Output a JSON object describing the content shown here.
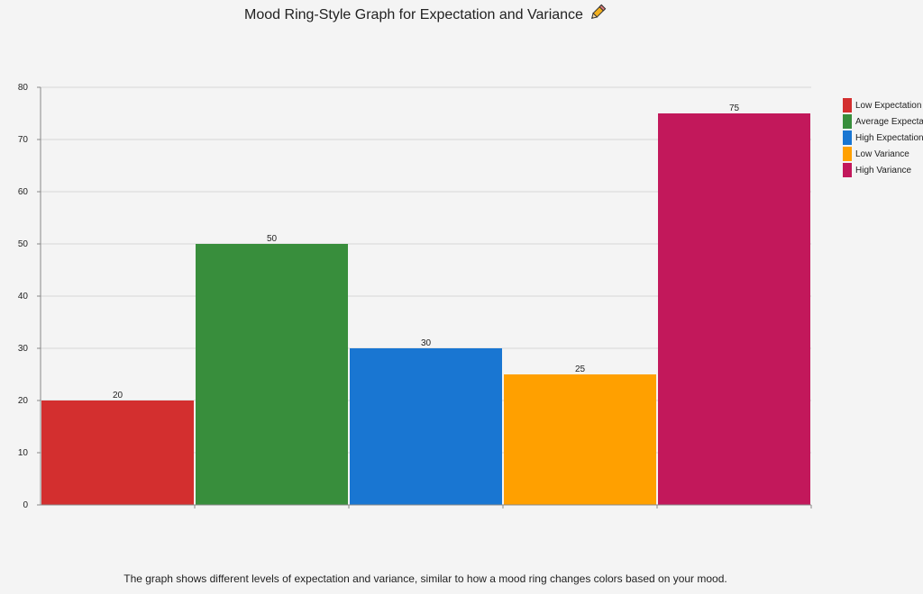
{
  "title": "Mood Ring-Style Graph for Expectation and Variance",
  "title_icon": "pencil-icon",
  "caption": "The graph shows different levels of expectation and variance, similar to how a mood ring changes colors based on your mood.",
  "chart_data": {
    "type": "bar",
    "categories": [
      "Low Expectation",
      "Average Expectation",
      "High Expectation",
      "Low Variance",
      "High Variance"
    ],
    "values": [
      20,
      50,
      30,
      25,
      75
    ],
    "colors": [
      "#d32f2f",
      "#388e3c",
      "#1976d2",
      "#ffa000",
      "#c2185b"
    ],
    "data_labels": [
      "20",
      "50",
      "30",
      "25",
      "75"
    ],
    "ylim": [
      0,
      80
    ],
    "yticks": [
      0,
      10,
      20,
      30,
      40,
      50,
      60,
      70,
      80
    ],
    "grid": true,
    "legend_placement": "right",
    "legend": [
      {
        "label": "Low Expectation",
        "color": "#d32f2f"
      },
      {
        "label": "Average Expectation",
        "color": "#388e3c"
      },
      {
        "label": "High Expectation",
        "color": "#1976d2"
      },
      {
        "label": "Low Variance",
        "color": "#ffa000"
      },
      {
        "label": "High Variance",
        "color": "#c2185b"
      }
    ]
  }
}
